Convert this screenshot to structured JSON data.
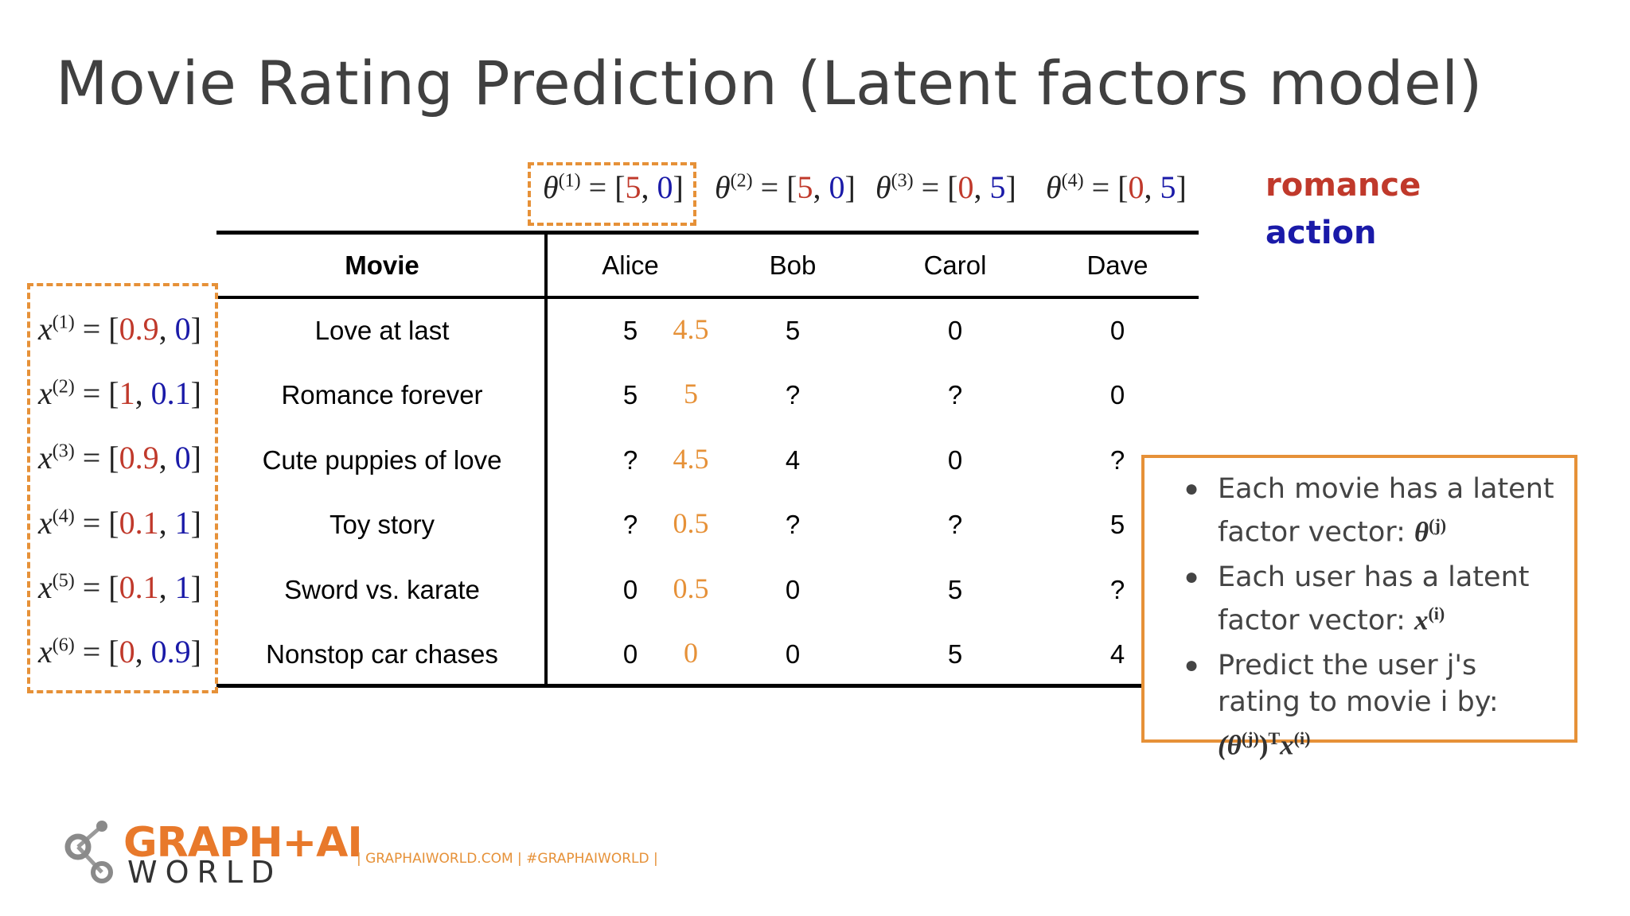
{
  "title": "Movie Rating Prediction (Latent factors model)",
  "colors": {
    "romance": "#c0392b",
    "action": "#1a1aa8",
    "highlight": "#e69138"
  },
  "legend": {
    "romance": "romance",
    "action": "action"
  },
  "thetas": [
    {
      "sym": "θ",
      "idx": "(1)",
      "eq": " = [",
      "a": "5",
      "sep": ", ",
      "b": "0",
      "end": "]"
    },
    {
      "sym": "θ",
      "idx": "(2)",
      "eq": " = [",
      "a": "5",
      "sep": ", ",
      "b": "0",
      "end": "]"
    },
    {
      "sym": "θ",
      "idx": "(3)",
      "eq": " = [",
      "a": "0",
      "sep": ", ",
      "b": "5",
      "end": "]"
    },
    {
      "sym": "θ",
      "idx": "(4)",
      "eq": " = [",
      "a": "0",
      "sep": ", ",
      "b": "5",
      "end": "]"
    }
  ],
  "table": {
    "header": [
      "Movie",
      "Alice",
      "Bob",
      "Carol",
      "Dave"
    ],
    "rows": [
      {
        "movie": "Love at last",
        "alice": "5",
        "pred": "4.5",
        "bob": "5",
        "carol": "0",
        "dave": "0"
      },
      {
        "movie": "Romance forever",
        "alice": "5",
        "pred": "5",
        "bob": "?",
        "carol": "?",
        "dave": "0"
      },
      {
        "movie": "Cute puppies of love",
        "alice": "?",
        "pred": "4.5",
        "bob": "4",
        "carol": "0",
        "dave": "?"
      },
      {
        "movie": "Toy story",
        "alice": "?",
        "pred": "0.5",
        "bob": "?",
        "carol": "?",
        "dave": "5"
      },
      {
        "movie": "Sword vs. karate",
        "alice": "0",
        "pred": "0.5",
        "bob": "0",
        "carol": "5",
        "dave": "?"
      },
      {
        "movie": "Nonstop car chases",
        "alice": "0",
        "pred": "0",
        "bob": "0",
        "carol": "5",
        "dave": "4"
      }
    ]
  },
  "xvectors": [
    {
      "sym": "x",
      "idx": "(1)",
      "eq": " = [",
      "a": "0.9",
      "sep": ", ",
      "b": "0",
      "end": "]"
    },
    {
      "sym": "x",
      "idx": "(2)",
      "eq": " = [",
      "a": "1",
      "sep": ", ",
      "b": "0.1",
      "end": "]"
    },
    {
      "sym": "x",
      "idx": "(3)",
      "eq": " = [",
      "a": "0.9",
      "sep": ", ",
      "b": "0",
      "end": "]"
    },
    {
      "sym": "x",
      "idx": "(4)",
      "eq": " = [",
      "a": "0.1",
      "sep": ", ",
      "b": "1",
      "end": "]"
    },
    {
      "sym": "x",
      "idx": "(5)",
      "eq": " = [",
      "a": "0.1",
      "sep": ", ",
      "b": "1",
      "end": "]"
    },
    {
      "sym": "x",
      "idx": "(6)",
      "eq": " = [",
      "a": "0",
      "sep": ", ",
      "b": "0.9",
      "end": "]"
    }
  ],
  "notes": [
    {
      "text": "Each movie has a latent factor vector: ",
      "math": "θ",
      "sup": "(j)"
    },
    {
      "text": "Each user has a latent factor vector: ",
      "math": "x",
      "sup": "(i)"
    },
    {
      "text": "Predict the user j's rating to movie i by: ",
      "math": "(θ",
      "sup": "(j)",
      "math2": ")",
      "sup2": "T",
      "math3": "x",
      "sup3": "(i)"
    }
  ],
  "logo": {
    "line1": "GRAPH+AI",
    "line2": "WORLD"
  },
  "footer": "| GRAPHAIWORLD.COM  |  #GRAPHAIWORLD |"
}
